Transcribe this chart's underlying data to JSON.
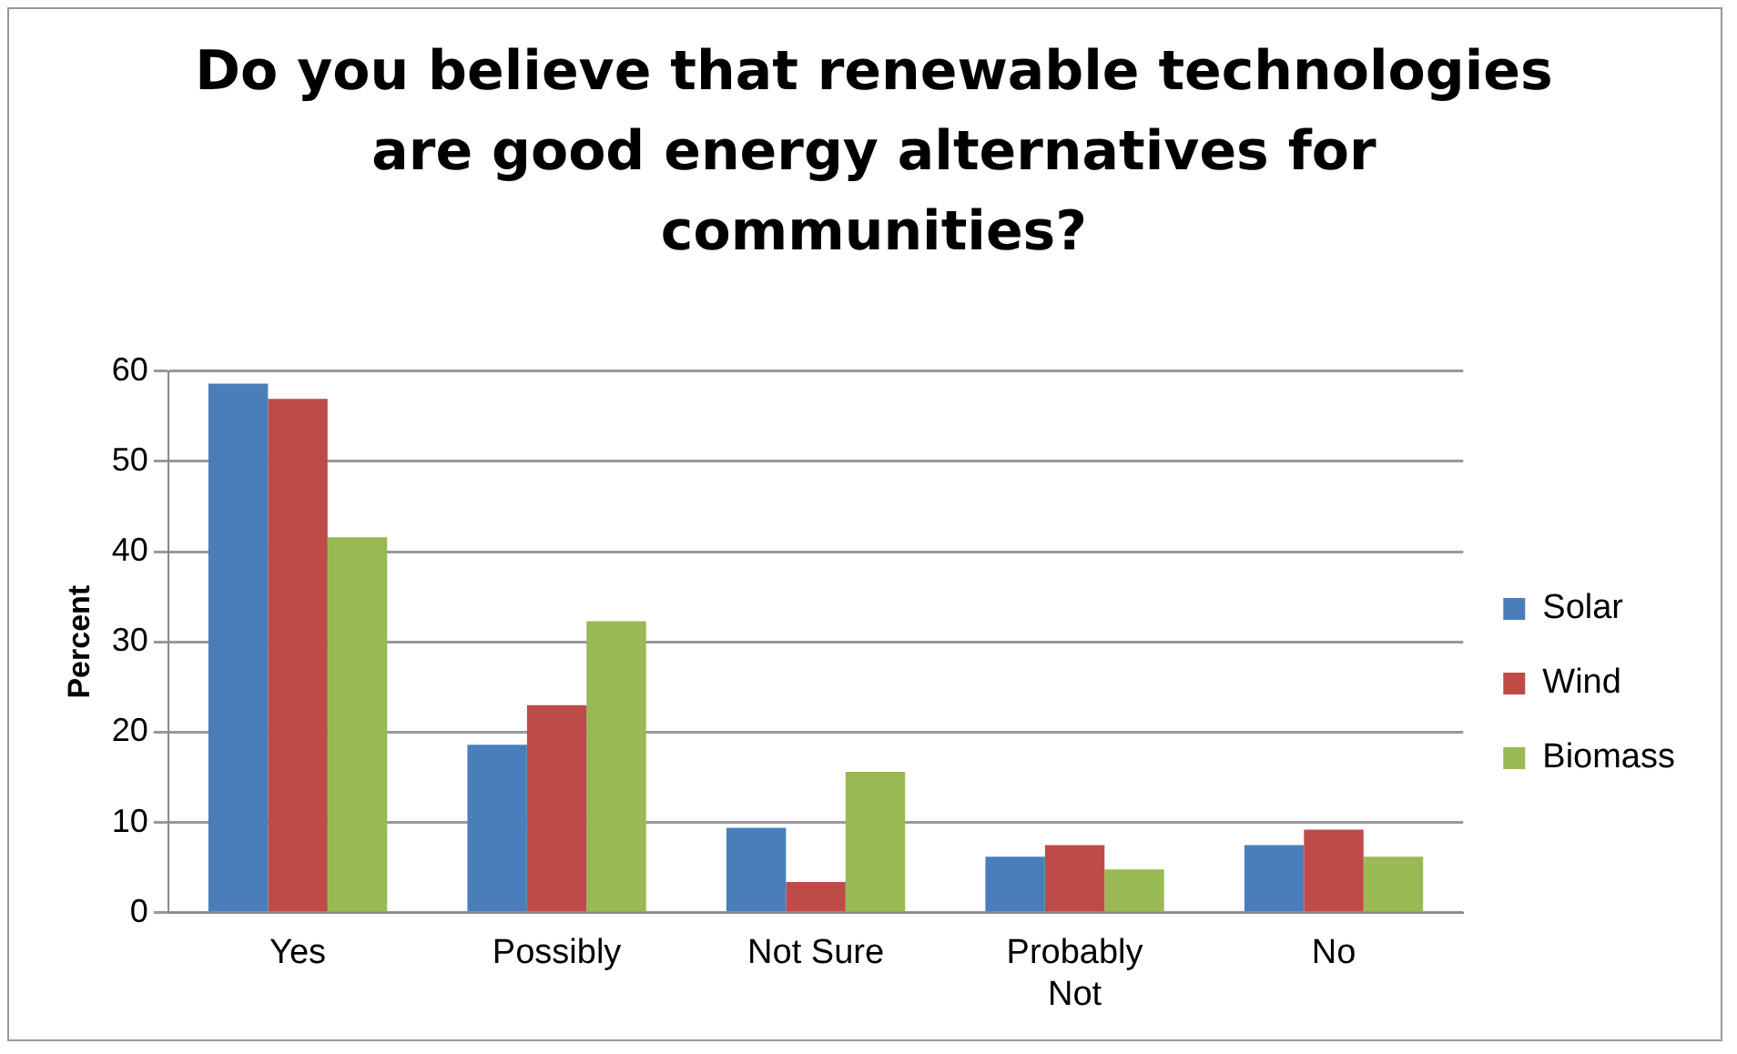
{
  "chart_data": {
    "type": "bar",
    "title": "Do you believe that renewable technologies are good energy alternatives for communities?",
    "ylabel": "Percent",
    "categories": [
      "Yes",
      "Possibly",
      "Not Sure",
      "Probably Not",
      "No"
    ],
    "series": [
      {
        "name": "Solar",
        "color": "#4a7ebb",
        "values": [
          58.6,
          18.6,
          9.4,
          6.2,
          7.5
        ]
      },
      {
        "name": "Wind",
        "color": "#be4b48",
        "values": [
          56.9,
          23.0,
          3.4,
          7.5,
          9.2
        ]
      },
      {
        "name": "Biomass",
        "color": "#98b954",
        "values": [
          41.6,
          32.3,
          15.6,
          4.8,
          6.2
        ]
      }
    ],
    "ylim": [
      0,
      60
    ],
    "yticks": [
      0,
      10,
      20,
      30,
      40,
      50,
      60
    ],
    "grid": "y",
    "legend": "right"
  }
}
